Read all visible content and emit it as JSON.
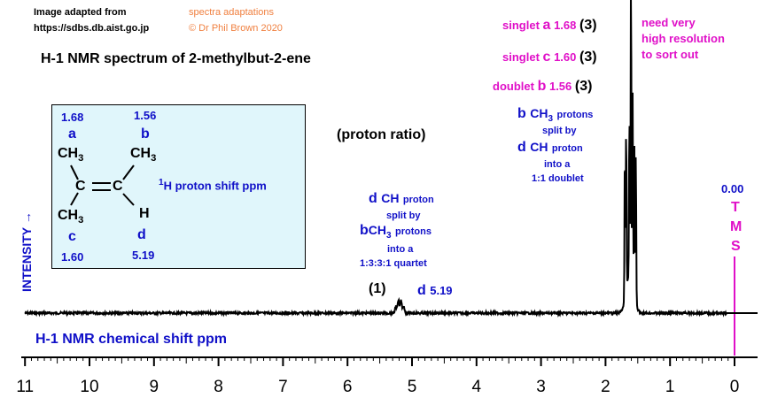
{
  "credit": {
    "line1": "Image adapted from",
    "line2": "https://sdbs.db.aist.go.jp",
    "adapt1": "spectra adaptations",
    "adapt2": "© Dr Phil Brown 2020"
  },
  "title": "H-1 NMR spectrum of 2-methylbut-2-ene",
  "proton_ratio": "(proton ratio)",
  "ylabel": "INTENSITY",
  "xlabel": "H-1 NMR chemical shift  ppm",
  "structure": {
    "shift_a": "1.68",
    "label_a": "a",
    "group_a": "CH",
    "shift_b": "1.56",
    "label_b": "b",
    "group_b": "CH",
    "shift_c": "1.60",
    "label_c": "c",
    "group_c": "CH",
    "shift_d": "5.19",
    "label_d": "d",
    "atom_h": "H",
    "c1": "C",
    "c2": "C",
    "sub3": "3",
    "legend_sup": "1",
    "legend": "H proton shift  ppm"
  },
  "annotations": {
    "quartet": {
      "l1a": "d",
      "l1b": "CH",
      "l1c": "proton",
      "l2": "split by",
      "l3a": "b",
      "l3b": "CH",
      "l3sub": "3",
      "l3c": "protons",
      "l4": "into a",
      "l5": "1:3:3:1 quartet"
    },
    "peak_d_ratio": "(1)",
    "peak_d_label": "d",
    "peak_d_shift": "5.19",
    "singlet_a": {
      "kind": "singlet",
      "letter": "a",
      "shift": "1.68",
      "ratio": "(3)"
    },
    "singlet_c": {
      "kind": "singlet",
      "letter": "c",
      "shift": "1.60",
      "ratio": "(3)"
    },
    "doublet_b": {
      "kind": "doublet",
      "letter": "b",
      "shift": "1.56",
      "ratio": "(3)"
    },
    "doublet": {
      "l1a": "b",
      "l1b": "CH",
      "l1sub": "3",
      "l1c": "protons",
      "l2": "split by",
      "l3a": "d",
      "l3b": "CH",
      "l3c": "proton",
      "l4": "into a",
      "l5": "1:1 doublet"
    },
    "resolution": {
      "l1": "need very",
      "l2": "high resolution",
      "l3": "to sort out"
    },
    "tms": {
      "shift": "0.00",
      "t": "T",
      "m": "M",
      "s": "S"
    }
  },
  "colors": {
    "text_blue": "#1010c8",
    "magenta": "#e010c8",
    "orange": "#f08040",
    "box_bg": "#e0f6fb"
  },
  "chart_data": {
    "type": "line",
    "xlabel": "H-1 NMR chemical shift  ppm",
    "ylabel": "INTENSITY",
    "xlim": [
      11,
      0
    ],
    "x_ticks": [
      11,
      10,
      9,
      8,
      7,
      6,
      5,
      4,
      3,
      2,
      1,
      0
    ],
    "x_tick_labels": [
      "11",
      "10",
      "9",
      "8",
      "7",
      "6",
      "5",
      "4",
      "3",
      "2",
      "1",
      "0"
    ],
    "peaks": [
      {
        "name": "d",
        "shift": 5.19,
        "multiplicity": "quartet",
        "ratio": 1
      },
      {
        "name": "a",
        "shift": 1.68,
        "multiplicity": "singlet",
        "ratio": 3
      },
      {
        "name": "c",
        "shift": 1.6,
        "multiplicity": "singlet",
        "ratio": 3
      },
      {
        "name": "b",
        "shift": 1.56,
        "multiplicity": "doublet",
        "ratio": 3
      },
      {
        "name": "TMS",
        "shift": 0.0,
        "multiplicity": "reference"
      }
    ]
  }
}
